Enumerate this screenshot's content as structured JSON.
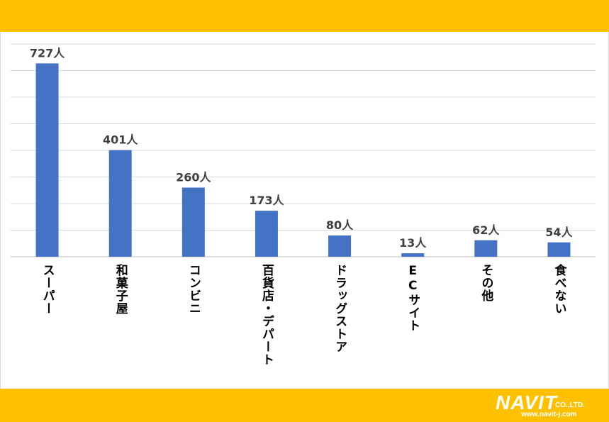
{
  "chart_data": {
    "type": "bar",
    "categories": [
      "スーパー",
      "和菓子屋",
      "コンビニ",
      "百貨店・デパート",
      "ドラッグストア",
      "ECサイト",
      "その他",
      "食べない"
    ],
    "values": [
      727,
      401,
      260,
      173,
      80,
      13,
      62,
      54
    ],
    "data_labels": [
      "727人",
      "401人",
      "260人",
      "173人",
      "80人",
      "13人",
      "62人",
      "54人"
    ],
    "ylim": [
      0,
      800
    ],
    "grid": true,
    "bar_color": "#4472c4",
    "gridline_color": "#d9d9d9",
    "legend": "none"
  },
  "brand": {
    "logo_word": "NAVIT",
    "logo_co": "CO.,LTD.",
    "logo_url": "www.navit-j.com",
    "accent_color": "#ffc000"
  }
}
